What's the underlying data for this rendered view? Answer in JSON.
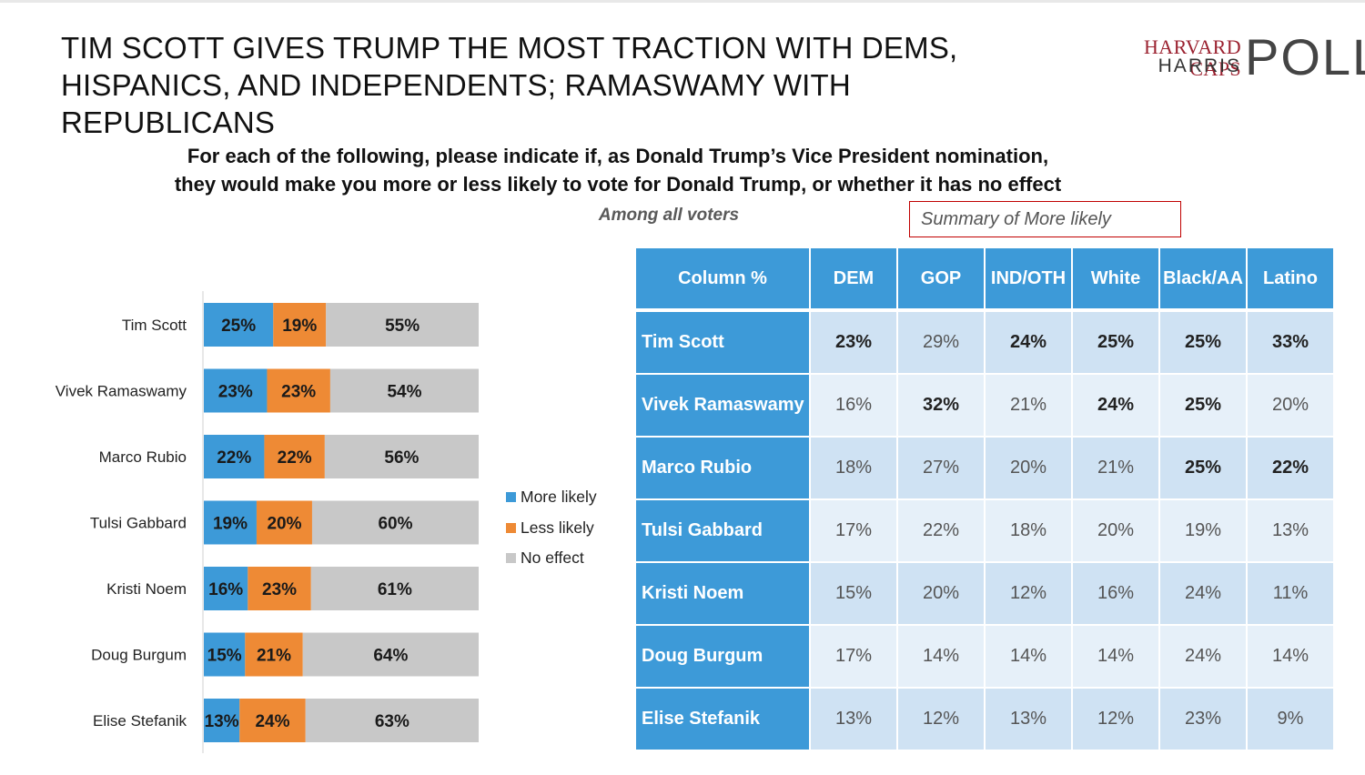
{
  "title": {
    "line1": "TIM SCOTT GIVES TRUMP THE MOST TRACTION WITH DEMS,",
    "line2": "HISPANICS, AND INDEPENDENTS; RAMASWAMY WITH REPUBLICANS"
  },
  "logo": {
    "line1": "HARVARD CAPS",
    "line2": "HARRIS",
    "poll": "POLL"
  },
  "question": {
    "line1": "For each of the following, please indicate if, as Donald Trump’s Vice President nomination,",
    "line2": "they would make you more or less likely to vote for Donald Trump, or whether it has no effect"
  },
  "among": "Among all voters",
  "summary_label": "Summary of More likely",
  "colors": {
    "more_likely": "#3d9ad8",
    "less_likely": "#ee8a35",
    "no_effect": "#c8c8c8",
    "table_header": "#3d9ad8",
    "box_border": "#c00000"
  },
  "chart_data": {
    "type": "bar",
    "orientation": "horizontal",
    "stacked": true,
    "categories": [
      "Tim Scott",
      "Vivek Ramaswamy",
      "Marco Rubio",
      "Tulsi Gabbard",
      "Kristi Noem",
      "Doug Burgum",
      "Elise Stefanik"
    ],
    "series": [
      {
        "name": "More likely",
        "values": [
          25,
          23,
          22,
          19,
          16,
          15,
          13
        ],
        "labels": [
          "25%",
          "23%",
          "22%",
          "19%",
          "16%",
          "15%",
          "13%"
        ],
        "color": "#3d9ad8"
      },
      {
        "name": "Less likely",
        "values": [
          19,
          23,
          22,
          20,
          23,
          21,
          24
        ],
        "labels": [
          "19%",
          "23%",
          "22%",
          "20%",
          "23%",
          "21%",
          "24%"
        ],
        "color": "#ee8a35"
      },
      {
        "name": "No effect",
        "values": [
          55,
          54,
          56,
          60,
          61,
          64,
          63
        ],
        "labels": [
          "55%",
          "54%",
          "56%",
          "60%",
          "61%",
          "64%",
          "63%"
        ],
        "color": "#c8c8c8"
      }
    ],
    "legend_position": "right",
    "grid": false
  },
  "table": {
    "corner": "Column %",
    "columns": [
      "DEM",
      "GOP",
      "IND/OTH",
      "White",
      "Black/AA",
      "Latino"
    ],
    "rows": [
      {
        "name": "Tim Scott",
        "values": [
          "23%",
          "29%",
          "24%",
          "25%",
          "25%",
          "33%"
        ],
        "bold": [
          true,
          false,
          true,
          true,
          true,
          true
        ]
      },
      {
        "name": "Vivek Ramaswamy",
        "values": [
          "16%",
          "32%",
          "21%",
          "24%",
          "25%",
          "20%"
        ],
        "bold": [
          false,
          true,
          false,
          true,
          true,
          false
        ]
      },
      {
        "name": "Marco Rubio",
        "values": [
          "18%",
          "27%",
          "20%",
          "21%",
          "25%",
          "22%"
        ],
        "bold": [
          false,
          false,
          false,
          false,
          true,
          true
        ]
      },
      {
        "name": "Tulsi Gabbard",
        "values": [
          "17%",
          "22%",
          "18%",
          "20%",
          "19%",
          "13%"
        ],
        "bold": [
          false,
          false,
          false,
          false,
          false,
          false
        ]
      },
      {
        "name": "Kristi Noem",
        "values": [
          "15%",
          "20%",
          "12%",
          "16%",
          "24%",
          "11%"
        ],
        "bold": [
          false,
          false,
          false,
          false,
          false,
          false
        ]
      },
      {
        "name": "Doug Burgum",
        "values": [
          "17%",
          "14%",
          "14%",
          "14%",
          "24%",
          "14%"
        ],
        "bold": [
          false,
          false,
          false,
          false,
          false,
          false
        ]
      },
      {
        "name": "Elise Stefanik",
        "values": [
          "13%",
          "12%",
          "13%",
          "12%",
          "23%",
          "9%"
        ],
        "bold": [
          false,
          false,
          false,
          false,
          false,
          false
        ]
      }
    ]
  }
}
